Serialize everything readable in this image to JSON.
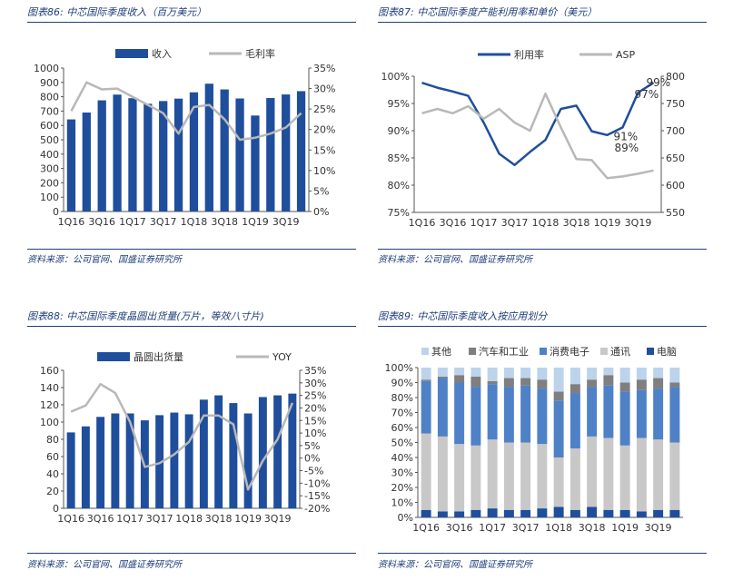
{
  "charts": [
    {
      "id": "c86",
      "title": "图表86: 中芯国际季度收入（百万美元）",
      "source": "资料来源：公司官网、国盛证券研究所",
      "chart_data": {
        "type": "bar",
        "categories": [
          "1Q16",
          "2Q16",
          "3Q16",
          "4Q16",
          "1Q17",
          "2Q17",
          "3Q17",
          "4Q17",
          "1Q18",
          "2Q18",
          "3Q18",
          "4Q18",
          "1Q19",
          "2Q19",
          "3Q19",
          "4Q19"
        ],
        "tick_labels": [
          "1Q16",
          "3Q16",
          "1Q17",
          "3Q17",
          "1Q18",
          "3Q18",
          "1Q19",
          "3Q19"
        ],
        "series": [
          {
            "name": "收入",
            "type": "bar",
            "axis": "left",
            "values": [
              642,
              690,
              775,
              815,
              790,
              751,
              770,
              787,
              831,
              891,
              851,
              788,
              669,
              791,
              816,
              839
            ]
          },
          {
            "name": "毛利率",
            "type": "line",
            "axis": "right",
            "values": [
              24.5,
              31.5,
              29.8,
              30.0,
              28.0,
              26.0,
              24.0,
              19.0,
              25.5,
              26.0,
              22.5,
              17.5,
              18.0,
              19.0,
              20.5,
              24.0
            ]
          }
        ],
        "ylim_left": [
          0,
          1000
        ],
        "yticks_left": [
          "0",
          "100",
          "200",
          "300",
          "400",
          "500",
          "600",
          "700",
          "800",
          "900",
          "1000"
        ],
        "ylim_right": [
          0,
          35
        ],
        "yticks_right": [
          "0%",
          "5%",
          "10%",
          "15%",
          "20%",
          "25%",
          "30%",
          "35%"
        ],
        "legend": [
          "收入",
          "毛利率"
        ],
        "colors": {
          "bar": "#1f4e9c",
          "line": "#b8b8b8"
        }
      }
    },
    {
      "id": "c87",
      "title": "图表87: 中芯国际季度产能利用率和单价（美元）",
      "source": "资料来源：公司官网、国盛证券研究所",
      "chart_data": {
        "type": "line",
        "categories": [
          "1Q16",
          "2Q16",
          "3Q16",
          "4Q16",
          "1Q17",
          "2Q17",
          "3Q17",
          "4Q17",
          "1Q18",
          "2Q18",
          "3Q18",
          "4Q18",
          "1Q19",
          "2Q19",
          "3Q19",
          "4Q19"
        ],
        "tick_labels": [
          "1Q16",
          "3Q16",
          "1Q17",
          "3Q17",
          "1Q18",
          "3Q18",
          "1Q19",
          "3Q19"
        ],
        "series": [
          {
            "name": "利用率",
            "type": "line",
            "axis": "left",
            "values": [
              98.8,
              97.9,
              97.2,
              96.4,
              91.5,
              85.8,
              83.7,
              86.1,
              88.3,
              94.0,
              94.6,
              89.9,
              89.2,
              90.6,
              97.0,
              98.8
            ]
          },
          {
            "name": "ASP",
            "type": "line",
            "axis": "right",
            "values": [
              732,
              740,
              732,
              745,
              722,
              740,
              715,
              700,
              768,
              706,
              648,
              646,
              613,
              616,
              621,
              627
            ]
          }
        ],
        "ylim_left": [
          75,
          100
        ],
        "yticks_left": [
          "75%",
          "80%",
          "85%",
          "90%",
          "95%",
          "100%"
        ],
        "ylim_right": [
          550,
          800
        ],
        "yticks_right": [
          "550",
          "600",
          "650",
          "700",
          "750",
          "800"
        ],
        "annotations": [
          "89%",
          "91%",
          "97%",
          "99%"
        ],
        "legend": [
          "利用率",
          "ASP"
        ],
        "colors": {
          "primary": "#1f4e9c",
          "secondary": "#b8b8b8"
        }
      }
    },
    {
      "id": "c88",
      "title": "图表88: 中芯国际季度晶圆出货量(万片，等效八寸片)",
      "source": "资料来源：公司官网、国盛证券研究所",
      "chart_data": {
        "type": "bar",
        "categories": [
          "1Q16",
          "2Q16",
          "3Q16",
          "4Q16",
          "1Q17",
          "2Q17",
          "3Q17",
          "4Q17",
          "1Q18",
          "2Q18",
          "3Q18",
          "4Q18",
          "1Q19",
          "2Q19",
          "3Q19",
          "4Q19"
        ],
        "tick_labels": [
          "1Q16",
          "3Q16",
          "1Q17",
          "3Q17",
          "1Q18",
          "3Q18",
          "1Q19",
          "3Q19"
        ],
        "series": [
          {
            "name": "晶圆出货量",
            "type": "bar",
            "axis": "left",
            "values": [
              88,
              95,
              106,
              110,
              110,
              102,
              108,
              111,
              109,
              126,
              131,
              122,
              110,
              129,
              131,
              133
            ]
          },
          {
            "name": "YOY",
            "type": "line",
            "axis": "right",
            "values": [
              18.5,
              21.0,
              29.5,
              26.0,
              14.5,
              -3.5,
              -2.0,
              1.5,
              6.5,
              17.0,
              17.0,
              13.5,
              -12.5,
              -1.0,
              7.5,
              22.0
            ]
          }
        ],
        "ylim_left": [
          0,
          160
        ],
        "yticks_left": [
          "0",
          "20",
          "40",
          "60",
          "80",
          "100",
          "120",
          "140",
          "160"
        ],
        "ylim_right": [
          -20,
          35
        ],
        "yticks_right": [
          "-20%",
          "-15%",
          "-10%",
          "-5%",
          "0%",
          "5%",
          "10%",
          "15%",
          "20%",
          "25%",
          "30%",
          "35%"
        ],
        "legend": [
          "晶圆出货量",
          "YOY"
        ],
        "colors": {
          "bar": "#1f4e9c",
          "line": "#b8b8b8"
        }
      }
    },
    {
      "id": "c89",
      "title": "图表89: 中芯国际季度收入按应用划分",
      "source": "资料来源：公司官网、国盛证券研究所",
      "chart_data": {
        "type": "bar",
        "stacked": true,
        "categories": [
          "1Q16",
          "2Q16",
          "3Q16",
          "4Q16",
          "1Q17",
          "2Q17",
          "3Q17",
          "4Q17",
          "1Q18",
          "2Q18",
          "3Q18",
          "4Q18",
          "1Q19",
          "2Q19",
          "3Q19",
          "4Q19"
        ],
        "tick_labels": [
          "1Q16",
          "3Q16",
          "1Q17",
          "3Q17",
          "1Q18",
          "3Q18",
          "1Q19",
          "3Q19"
        ],
        "series": [
          {
            "name": "电脑",
            "values": [
              5,
              4,
              4,
              5,
              6,
              5,
              5,
              6,
              7,
              5,
              7,
              5,
              5,
              4,
              5,
              5
            ]
          },
          {
            "name": "通讯",
            "values": [
              51,
              50,
              45,
              43,
              46,
              45,
              45,
              43,
              33,
              41,
              47,
              48,
              43,
              49,
              47,
              45
            ]
          },
          {
            "name": "消费电子",
            "values": [
              35,
              39,
              41,
              39,
              37,
              37,
              38,
              37,
              38,
              37,
              33,
              35,
              36,
              32,
              34,
              37
            ]
          },
          {
            "name": "汽车和工业",
            "values": [
              1,
              1,
              5,
              7,
              2,
              6,
              5,
              6,
              6,
              6,
              5,
              7,
              6,
              7,
              7,
              3
            ]
          },
          {
            "name": "其他",
            "values": [
              8,
              6,
              5,
              6,
              9,
              7,
              7,
              8,
              16,
              11,
              8,
              5,
              10,
              8,
              7,
              10
            ]
          }
        ],
        "ylim": [
          0,
          100
        ],
        "yticks": [
          "0%",
          "10%",
          "20%",
          "30%",
          "40%",
          "50%",
          "60%",
          "70%",
          "80%",
          "90%",
          "100%"
        ],
        "legend_order": [
          "其他",
          "汽车和工业",
          "消费电子",
          "通讯",
          "电脑"
        ],
        "colors": {
          "电脑": "#1f4e9c",
          "通讯": "#c8c8c8",
          "消费电子": "#4f81c7",
          "汽车和工业": "#7f7f7f",
          "其他": "#bcd3ec"
        }
      }
    }
  ]
}
